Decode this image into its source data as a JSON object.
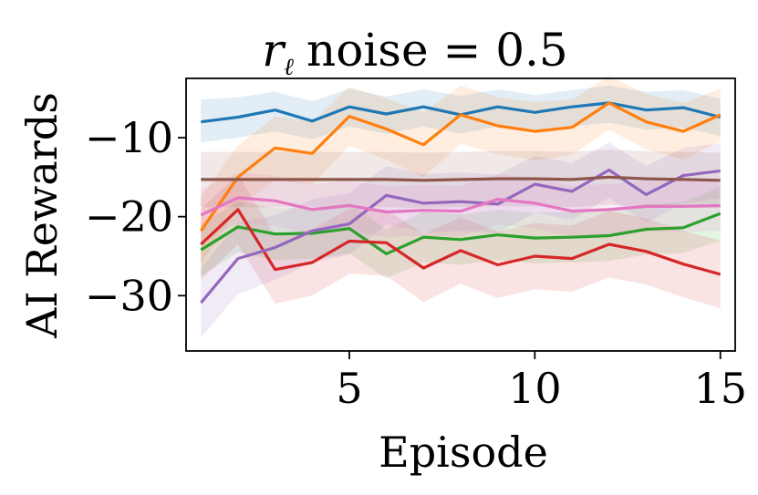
{
  "chart_data": {
    "type": "line",
    "title_symbol": "r",
    "title_subscript": "ℓ",
    "title_rest": "noise = 0.5",
    "xlabel": "Episode",
    "ylabel": "AI Rewards",
    "xlim": [
      0.6,
      15.4
    ],
    "ylim": [
      -37,
      -2.5
    ],
    "x": [
      1,
      2,
      3,
      4,
      5,
      6,
      7,
      8,
      9,
      10,
      11,
      12,
      13,
      14,
      15
    ],
    "xticks": [
      5,
      10,
      15
    ],
    "xtick_labels": [
      "5",
      "10",
      "15"
    ],
    "yticks": [
      -10,
      -20,
      -30
    ],
    "ytick_labels": [
      "−10",
      "−20",
      "−30"
    ],
    "grid": false,
    "legend": "none",
    "series": [
      {
        "name": "series-blue",
        "color": "#1f77b4",
        "values": [
          -8.0,
          -7.4,
          -6.5,
          -7.9,
          -6.1,
          -7.0,
          -6.1,
          -7.1,
          -6.1,
          -6.8,
          -6.1,
          -5.6,
          -6.5,
          -6.2,
          -7.4
        ],
        "lower": [
          -10.6,
          -10.0,
          -9.2,
          -10.2,
          -8.6,
          -9.5,
          -8.6,
          -9.5,
          -8.6,
          -9.2,
          -8.6,
          -8.1,
          -9.0,
          -8.7,
          -9.8
        ],
        "upper": [
          -5.2,
          -4.9,
          -4.2,
          -5.4,
          -3.8,
          -4.8,
          -3.9,
          -4.7,
          -3.9,
          -4.6,
          -4.0,
          -3.4,
          -4.2,
          -4.0,
          -5.1
        ]
      },
      {
        "name": "series-orange",
        "color": "#ff7f0e",
        "values": [
          -21.8,
          -15.0,
          -11.3,
          -12.0,
          -7.3,
          -8.9,
          -10.9,
          -7.1,
          -8.5,
          -9.2,
          -8.7,
          -5.6,
          -8.0,
          -9.2,
          -7.1
        ],
        "lower": [
          -26.0,
          -19.0,
          -15.3,
          -16.0,
          -11.0,
          -12.8,
          -15.0,
          -10.8,
          -12.1,
          -12.9,
          -12.2,
          -9.0,
          -11.5,
          -12.8,
          -10.4
        ],
        "upper": [
          -17.5,
          -11.0,
          -7.3,
          -8.0,
          -3.6,
          -5.0,
          -6.8,
          -3.4,
          -4.9,
          -5.5,
          -5.2,
          -2.2,
          -4.5,
          -5.6,
          -3.8
        ]
      },
      {
        "name": "series-green",
        "color": "#2ca02c",
        "values": [
          -24.2,
          -21.3,
          -22.2,
          -22.1,
          -21.5,
          -24.7,
          -22.6,
          -22.9,
          -22.3,
          -22.7,
          -22.6,
          -22.4,
          -21.6,
          -21.4,
          -19.6
        ],
        "lower": [
          -27.5,
          -24.5,
          -25.5,
          -25.3,
          -24.7,
          -27.8,
          -25.8,
          -26.1,
          -25.5,
          -25.9,
          -25.8,
          -25.6,
          -24.8,
          -24.6,
          -23.0
        ],
        "upper": [
          -20.9,
          -18.1,
          -18.9,
          -18.9,
          -18.3,
          -21.6,
          -19.4,
          -19.7,
          -19.1,
          -19.5,
          -19.4,
          -19.2,
          -18.4,
          -18.2,
          -16.2
        ]
      },
      {
        "name": "series-red",
        "color": "#d62728",
        "values": [
          -23.5,
          -19.1,
          -26.7,
          -25.8,
          -23.1,
          -23.3,
          -26.5,
          -24.3,
          -26.1,
          -25.0,
          -25.3,
          -23.5,
          -24.4,
          -26.0,
          -27.3
        ],
        "lower": [
          -28.0,
          -23.5,
          -31.0,
          -30.0,
          -27.2,
          -27.5,
          -30.8,
          -28.5,
          -30.3,
          -29.2,
          -29.5,
          -27.7,
          -28.6,
          -30.2,
          -31.6
        ],
        "upper": [
          -19.0,
          -14.7,
          -22.4,
          -21.6,
          -19.0,
          -19.1,
          -22.2,
          -20.1,
          -21.9,
          -20.8,
          -21.1,
          -19.3,
          -20.2,
          -21.8,
          -23.0
        ]
      },
      {
        "name": "series-purple",
        "color": "#9467bd",
        "values": [
          -30.9,
          -25.3,
          -23.9,
          -21.8,
          -20.9,
          -17.3,
          -18.3,
          -18.1,
          -18.4,
          -15.9,
          -16.8,
          -14.1,
          -17.2,
          -14.8,
          -14.2
        ],
        "lower": [
          -35.3,
          -29.8,
          -28.0,
          -25.8,
          -24.8,
          -21.0,
          -22.0,
          -21.8,
          -22.1,
          -19.5,
          -20.4,
          -17.6,
          -20.8,
          -18.3,
          -17.7
        ],
        "upper": [
          -26.5,
          -20.8,
          -19.8,
          -17.8,
          -17.0,
          -13.6,
          -14.6,
          -14.4,
          -14.7,
          -12.3,
          -13.2,
          -10.6,
          -13.6,
          -11.3,
          -10.7
        ]
      },
      {
        "name": "series-brown",
        "color": "#8c564b",
        "values": [
          -15.3,
          -15.3,
          -15.3,
          -15.3,
          -15.3,
          -15.3,
          -15.4,
          -15.3,
          -15.2,
          -15.2,
          -15.3,
          -15.0,
          -15.2,
          -15.3,
          -15.4
        ],
        "lower": [
          -18.8,
          -18.8,
          -18.8,
          -18.8,
          -18.8,
          -18.8,
          -18.9,
          -18.8,
          -18.7,
          -18.7,
          -18.8,
          -18.5,
          -18.7,
          -18.8,
          -18.9
        ],
        "upper": [
          -11.8,
          -11.8,
          -11.8,
          -11.8,
          -11.8,
          -11.8,
          -11.9,
          -11.8,
          -11.7,
          -11.7,
          -11.8,
          -11.5,
          -11.7,
          -11.8,
          -11.9
        ]
      },
      {
        "name": "series-pink",
        "color": "#e377c2",
        "values": [
          -19.8,
          -17.6,
          -18.0,
          -19.1,
          -18.6,
          -19.4,
          -19.2,
          -19.3,
          -17.8,
          -18.3,
          -19.3,
          -19.1,
          -18.7,
          -18.7,
          -18.6
        ],
        "lower": [
          -23.0,
          -20.8,
          -21.2,
          -22.3,
          -21.8,
          -22.6,
          -22.4,
          -22.5,
          -21.0,
          -21.5,
          -22.5,
          -22.3,
          -21.9,
          -21.9,
          -21.8
        ],
        "upper": [
          -16.6,
          -14.4,
          -14.8,
          -15.9,
          -15.4,
          -16.2,
          -16.0,
          -16.1,
          -14.6,
          -15.1,
          -16.1,
          -15.9,
          -15.5,
          -15.5,
          -15.4
        ]
      }
    ]
  }
}
